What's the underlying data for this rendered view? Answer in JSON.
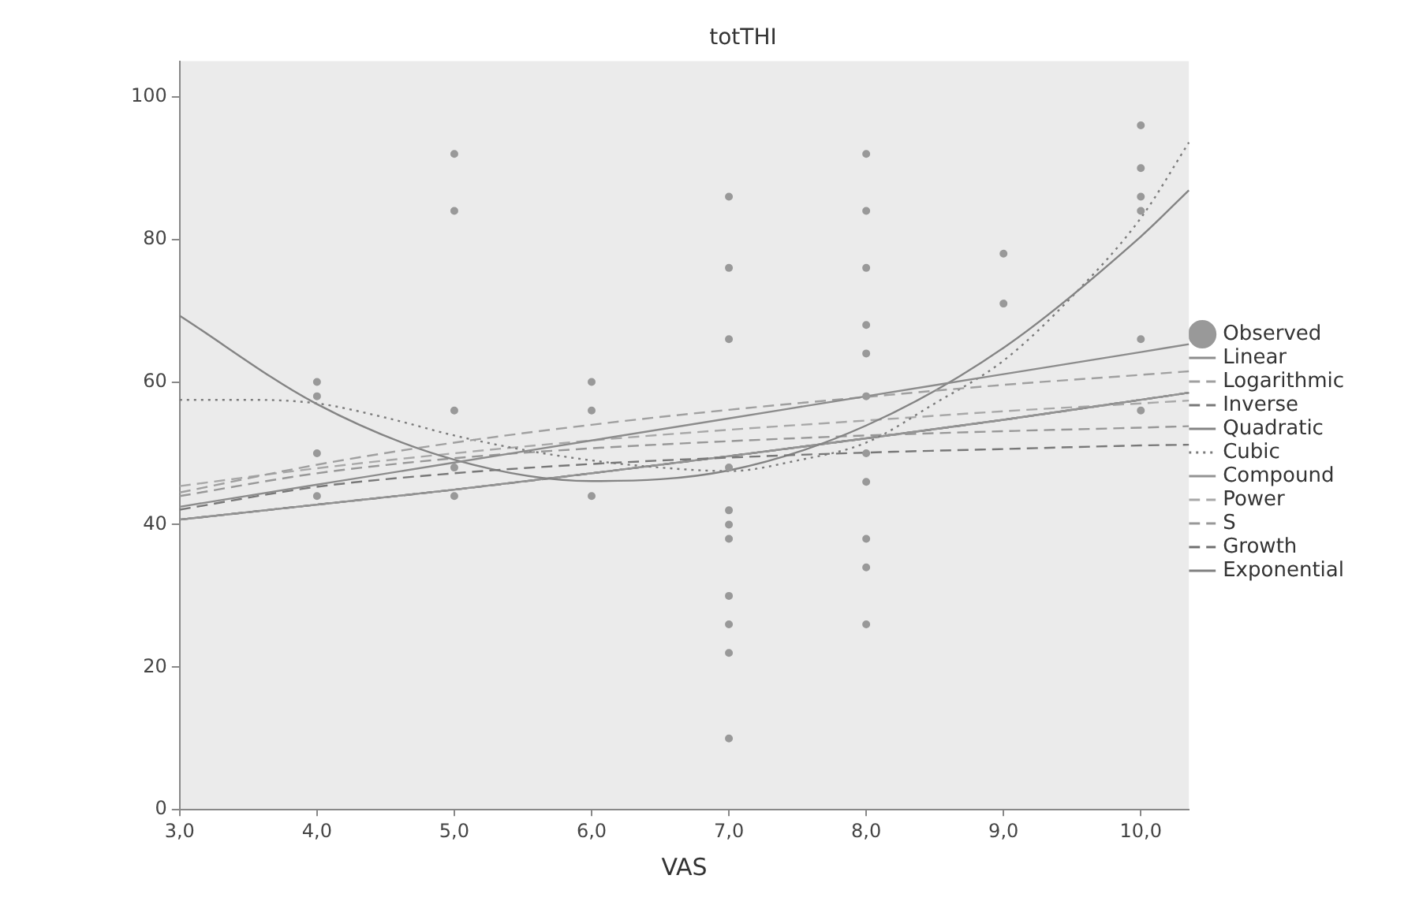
{
  "chart_data": {
    "type": "scatter",
    "title": "totTHI",
    "xlabel": "VAS",
    "xlim": [
      3,
      10.35
    ],
    "ylim": [
      0,
      105
    ],
    "xticks": [
      {
        "value": 3,
        "label": "3,0"
      },
      {
        "value": 4,
        "label": "4,0"
      },
      {
        "value": 5,
        "label": "5,0"
      },
      {
        "value": 6,
        "label": "6,0"
      },
      {
        "value": 7,
        "label": "7,0"
      },
      {
        "value": 8,
        "label": "8,0"
      },
      {
        "value": 9,
        "label": "9,0"
      },
      {
        "value": 10,
        "label": "10,0"
      }
    ],
    "yticks": [
      0,
      20,
      40,
      60,
      80,
      100
    ],
    "grid": false,
    "legend": "right",
    "series": [
      {
        "name": "Observed",
        "type": "scatter",
        "marker": "circle",
        "color": "#999999",
        "x": [
          4,
          4,
          4,
          4,
          5,
          5,
          5,
          5,
          5,
          6,
          6,
          6,
          7,
          7,
          7,
          7,
          7,
          7,
          7,
          7,
          7,
          7,
          7,
          8,
          8,
          8,
          8,
          8,
          8,
          8,
          8,
          8,
          8,
          8,
          9,
          9,
          10,
          10,
          10,
          10,
          10,
          10
        ],
        "values": [
          60,
          58,
          50,
          44,
          92,
          84,
          56,
          48,
          44,
          60,
          56,
          44,
          86,
          76,
          66,
          48,
          42,
          40,
          38,
          30,
          26,
          22,
          10,
          92,
          84,
          76,
          68,
          64,
          58,
          50,
          46,
          38,
          34,
          26,
          78,
          71,
          96,
          90,
          86,
          84,
          66,
          56
        ]
      },
      {
        "name": "Linear",
        "type": "line",
        "line_style": "solid",
        "color": "#8c8c8c",
        "x": [
          3,
          4,
          5,
          6,
          7,
          8,
          9,
          10,
          10.35
        ],
        "values": [
          42.5,
          45.6,
          48.7,
          51.8,
          54.9,
          58.0,
          61.1,
          64.2,
          65.3
        ]
      },
      {
        "name": "Logarithmic",
        "type": "line",
        "line_style": "dashed",
        "color": "#a0a0a0",
        "x": [
          3,
          4,
          5,
          6,
          7,
          8,
          9,
          10,
          10.35
        ],
        "values": [
          44.5,
          48.4,
          51.5,
          54.0,
          56.1,
          57.9,
          59.6,
          61.0,
          61.5
        ]
      },
      {
        "name": "Inverse",
        "type": "line",
        "line_style": "dashed",
        "color": "#787878",
        "x": [
          3,
          4,
          5,
          6,
          7,
          8,
          9,
          10,
          10.35
        ],
        "values": [
          42.1,
          45.3,
          47.2,
          48.5,
          49.4,
          50.1,
          50.6,
          51.1,
          51.2
        ]
      },
      {
        "name": "Quadratic",
        "type": "line",
        "line_style": "solid",
        "color": "#848484",
        "x": [
          3,
          4,
          5,
          6,
          7,
          8,
          9,
          10,
          10.35
        ],
        "values": [
          69.3,
          56.9,
          49.1,
          46.1,
          47.6,
          53.9,
          64.8,
          80.4,
          86.9
        ]
      },
      {
        "name": "Cubic",
        "type": "line",
        "line_style": "dotted",
        "color": "#7c7c7c",
        "x": [
          3,
          3.5,
          4,
          4.5,
          5,
          5.5,
          6,
          6.5,
          7,
          7.5,
          8,
          8.5,
          9,
          9.5,
          10,
          10.35
        ],
        "values": [
          57.5,
          57.5,
          57,
          55,
          52.5,
          50.5,
          49,
          48,
          47.5,
          49,
          51.5,
          57,
          63,
          72,
          83,
          93.6
        ]
      },
      {
        "name": "Compound",
        "type": "line",
        "line_style": "solid",
        "color": "#949494",
        "x": [
          3,
          4,
          5,
          6,
          7,
          8,
          9,
          10,
          10.35
        ],
        "values": [
          40.7,
          42.8,
          44.9,
          47.2,
          49.6,
          52.1,
          54.7,
          57.5,
          58.5
        ]
      },
      {
        "name": "Power",
        "type": "line",
        "line_style": "dashed",
        "color": "#a8a8a8",
        "x": [
          3,
          4,
          5,
          6,
          7,
          8,
          9,
          10,
          10.35
        ],
        "values": [
          45.4,
          47.9,
          50.0,
          51.8,
          53.3,
          54.6,
          55.9,
          57.0,
          57.4
        ]
      },
      {
        "name": "S",
        "type": "line",
        "line_style": "dashed",
        "color": "#989898",
        "x": [
          3,
          4,
          5,
          6,
          7,
          8,
          9,
          10,
          10.35
        ],
        "values": [
          44.0,
          47.2,
          49.3,
          50.7,
          51.7,
          52.5,
          53.1,
          53.6,
          53.8
        ]
      },
      {
        "name": "Growth",
        "type": "line",
        "line_style": "dashed",
        "color": "#707070",
        "x": [
          3,
          4,
          5,
          6,
          7,
          8,
          9,
          10,
          10.35
        ],
        "values": [
          40.7,
          42.8,
          44.9,
          47.2,
          49.6,
          52.1,
          54.7,
          57.5,
          58.5
        ]
      },
      {
        "name": "Exponential",
        "type": "line",
        "line_style": "solid",
        "color": "#808080",
        "x": [
          3,
          4,
          5,
          6,
          7,
          8,
          9,
          10,
          10.35
        ],
        "values": [
          40.7,
          42.8,
          44.9,
          47.2,
          49.6,
          52.1,
          54.7,
          57.5,
          58.5
        ]
      }
    ]
  }
}
